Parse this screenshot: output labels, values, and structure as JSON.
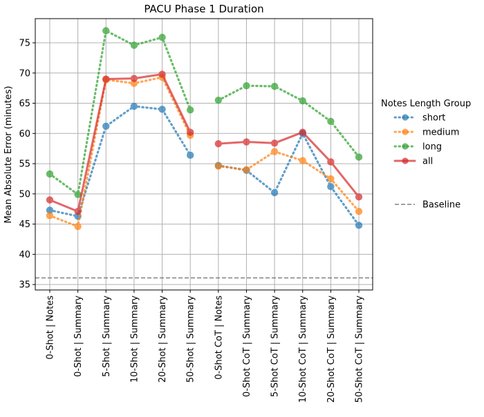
{
  "chart_data": {
    "type": "line",
    "title": "PACU Phase 1 Duration",
    "xlabel": "",
    "ylabel": "Mean Absolute Error (minutes)",
    "ylim": [
      34.1,
      79.0
    ],
    "yticks": [
      35,
      40,
      45,
      50,
      55,
      60,
      65,
      70,
      75
    ],
    "grid": true,
    "legend_title": "Notes Length Group",
    "legend_position": "right",
    "categories": [
      "0-Shot | Notes",
      "0-Shot | Summary",
      "5-Shot | Summary",
      "10-Shot | Summary",
      "20-Shot | Summary",
      "50-Shot | Summary",
      "0-Shot CoT | Notes",
      "0-Shot CoT | Summary",
      "5-Shot CoT | Summary",
      "10-Shot CoT | Summary",
      "20-Shot CoT | Summary",
      "50-Shot CoT | Summary"
    ],
    "segments": [
      [
        0,
        5
      ],
      [
        6,
        11
      ]
    ],
    "series": [
      {
        "name": "short",
        "color": "#1f77b4",
        "style": "dotted",
        "values": [
          47.3,
          46.3,
          61.2,
          64.5,
          64.0,
          56.4,
          54.7,
          53.9,
          50.2,
          60.0,
          51.2,
          44.8
        ]
      },
      {
        "name": "medium",
        "color": "#ff7f0e",
        "style": "dotted",
        "values": [
          46.4,
          44.6,
          68.9,
          68.3,
          69.3,
          59.7,
          54.6,
          54.0,
          57.0,
          55.5,
          52.5,
          47.1
        ]
      },
      {
        "name": "long",
        "color": "#2ca02c",
        "style": "dotted",
        "values": [
          53.3,
          49.9,
          77.0,
          74.6,
          75.9,
          63.9,
          65.5,
          67.9,
          67.8,
          65.4,
          62.0,
          56.1
        ]
      },
      {
        "name": "all",
        "color": "#d62728",
        "style": "solid",
        "values": [
          49.0,
          47.1,
          69.0,
          69.1,
          69.8,
          60.2,
          58.3,
          58.6,
          58.4,
          60.2,
          55.3,
          49.5
        ]
      }
    ],
    "baseline": {
      "name": "Baseline",
      "value": 36.1,
      "color": "#808080",
      "style": "dashed"
    }
  }
}
